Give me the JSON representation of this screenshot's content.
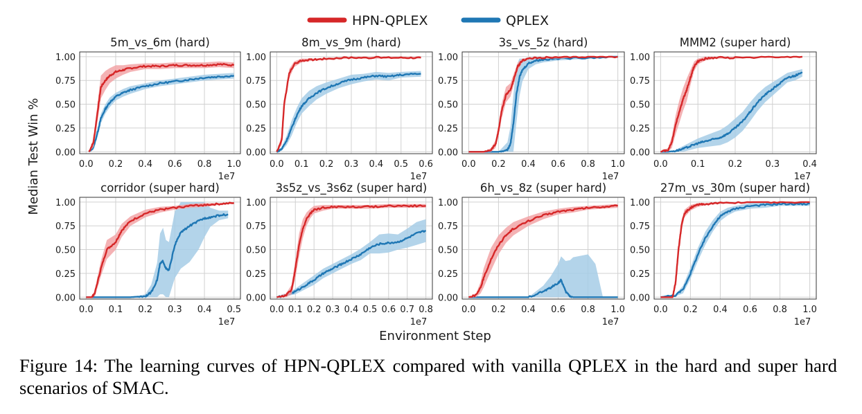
{
  "figure": {
    "caption": "Figure 14:  The learning curves of HPN-QPLEX compared with vanilla QPLEX in the hard and super hard scenarios of SMAC.",
    "legend": [
      {
        "label": "HPN-QPLEX",
        "color": "#d62728"
      },
      {
        "label": "QPLEX",
        "color": "#1f77b4"
      }
    ],
    "shared_xlabel": "Environment Step",
    "shared_ylabel": "Median Test Win  %",
    "band_colors": {
      "HPN-QPLEX": "#f2a5a7",
      "QPLEX": "#a6cde6"
    },
    "line_colors": {
      "HPN-QPLEX": "#d62728",
      "QPLEX": "#1f77b4"
    }
  },
  "chart_data": [
    {
      "type": "line",
      "title": "5m_vs_6m (hard)",
      "xlim": [
        0,
        1.0
      ],
      "ylim": [
        0,
        1.0
      ],
      "xticks": [
        "0.0",
        "0.2",
        "0.4",
        "0.6",
        "0.8",
        "1.0"
      ],
      "yticks": [
        "0.00",
        "0.25",
        "0.50",
        "0.75",
        "1.00"
      ],
      "x_scale_label": "1e7",
      "series": [
        {
          "name": "HPN-QPLEX",
          "x": [
            0.02,
            0.05,
            0.08,
            0.1,
            0.13,
            0.16,
            0.2,
            0.25,
            0.3,
            0.4,
            0.5,
            0.6,
            0.7,
            0.8,
            0.9,
            1.0
          ],
          "y": [
            0.0,
            0.1,
            0.45,
            0.68,
            0.75,
            0.8,
            0.84,
            0.86,
            0.88,
            0.9,
            0.9,
            0.91,
            0.91,
            0.91,
            0.92,
            0.91
          ],
          "band": [
            0.0,
            0.05,
            0.1,
            0.12,
            0.1,
            0.08,
            0.07,
            0.05,
            0.04,
            0.03,
            0.03,
            0.03,
            0.03,
            0.03,
            0.03,
            0.03
          ]
        },
        {
          "name": "QPLEX",
          "x": [
            0.02,
            0.05,
            0.08,
            0.1,
            0.13,
            0.16,
            0.2,
            0.25,
            0.3,
            0.4,
            0.5,
            0.6,
            0.7,
            0.8,
            0.9,
            1.0
          ],
          "y": [
            0.0,
            0.05,
            0.22,
            0.35,
            0.45,
            0.52,
            0.58,
            0.62,
            0.65,
            0.69,
            0.72,
            0.74,
            0.76,
            0.78,
            0.79,
            0.8
          ],
          "band": [
            0.0,
            0.03,
            0.05,
            0.05,
            0.05,
            0.05,
            0.04,
            0.04,
            0.04,
            0.03,
            0.03,
            0.03,
            0.03,
            0.03,
            0.03,
            0.03
          ]
        }
      ]
    },
    {
      "type": "line",
      "title": "8m_vs_9m (hard)",
      "xlim": [
        0,
        0.6
      ],
      "ylim": [
        0,
        1.0
      ],
      "xticks": [
        "0.0",
        "0.1",
        "0.2",
        "0.3",
        "0.4",
        "0.5",
        "0.6"
      ],
      "yticks": [
        "0.00",
        "0.25",
        "0.50",
        "0.75",
        "1.00"
      ],
      "x_scale_label": "1e7",
      "series": [
        {
          "name": "HPN-QPLEX",
          "x": [
            0.0,
            0.02,
            0.03,
            0.05,
            0.07,
            0.1,
            0.15,
            0.2,
            0.3,
            0.4,
            0.5,
            0.58
          ],
          "y": [
            0.0,
            0.12,
            0.5,
            0.82,
            0.92,
            0.96,
            0.97,
            0.98,
            0.99,
            0.99,
            0.99,
            0.99
          ],
          "band": [
            0.0,
            0.05,
            0.05,
            0.05,
            0.03,
            0.02,
            0.01,
            0.01,
            0.01,
            0.01,
            0.01,
            0.01
          ]
        },
        {
          "name": "QPLEX",
          "x": [
            0.0,
            0.02,
            0.04,
            0.06,
            0.08,
            0.1,
            0.13,
            0.16,
            0.2,
            0.25,
            0.3,
            0.35,
            0.4,
            0.45,
            0.5,
            0.58
          ],
          "y": [
            0.0,
            0.03,
            0.12,
            0.25,
            0.38,
            0.48,
            0.56,
            0.62,
            0.67,
            0.72,
            0.76,
            0.78,
            0.8,
            0.79,
            0.81,
            0.82
          ],
          "band": [
            0.0,
            0.02,
            0.05,
            0.08,
            0.08,
            0.08,
            0.08,
            0.07,
            0.06,
            0.05,
            0.05,
            0.04,
            0.04,
            0.04,
            0.03,
            0.03
          ]
        }
      ]
    },
    {
      "type": "line",
      "title": "3s_vs_5z (hard)",
      "xlim": [
        0,
        1.0
      ],
      "ylim": [
        0,
        1.0
      ],
      "xticks": [
        "0.0",
        "0.2",
        "0.4",
        "0.6",
        "0.8",
        "1.0"
      ],
      "yticks": [
        "0.00",
        "0.25",
        "0.50",
        "0.75",
        "1.00"
      ],
      "x_scale_label": "1e7",
      "series": [
        {
          "name": "HPN-QPLEX",
          "x": [
            0.0,
            0.1,
            0.15,
            0.18,
            0.2,
            0.22,
            0.25,
            0.28,
            0.3,
            0.33,
            0.36,
            0.4,
            0.5,
            0.6,
            0.8,
            1.0
          ],
          "y": [
            0.0,
            0.0,
            0.02,
            0.08,
            0.22,
            0.42,
            0.6,
            0.65,
            0.75,
            0.9,
            0.96,
            0.98,
            0.99,
            0.99,
            1.0,
            1.0
          ],
          "band": [
            0.0,
            0.0,
            0.02,
            0.04,
            0.06,
            0.08,
            0.08,
            0.07,
            0.06,
            0.04,
            0.02,
            0.01,
            0.01,
            0.01,
            0.0,
            0.0
          ]
        },
        {
          "name": "QPLEX",
          "x": [
            0.0,
            0.2,
            0.26,
            0.28,
            0.3,
            0.32,
            0.34,
            0.36,
            0.4,
            0.45,
            0.5,
            0.6,
            0.8,
            1.0
          ],
          "y": [
            0.0,
            0.0,
            0.02,
            0.08,
            0.3,
            0.6,
            0.78,
            0.86,
            0.93,
            0.96,
            0.97,
            0.98,
            0.99,
            1.0
          ],
          "band": [
            0.0,
            0.0,
            0.08,
            0.18,
            0.3,
            0.3,
            0.2,
            0.12,
            0.06,
            0.04,
            0.03,
            0.02,
            0.01,
            0.0
          ]
        }
      ]
    },
    {
      "type": "line",
      "title": "MMM2 (super hard)",
      "xlim": [
        0,
        0.4
      ],
      "ylim": [
        0,
        1.0
      ],
      "xticks": [
        "0.0",
        "0.1",
        "0.2",
        "0.3",
        "0.4"
      ],
      "yticks": [
        "0.00",
        "0.25",
        "0.50",
        "0.75",
        "1.00"
      ],
      "x_scale_label": "1e7",
      "series": [
        {
          "name": "HPN-QPLEX",
          "x": [
            0.0,
            0.02,
            0.03,
            0.04,
            0.05,
            0.06,
            0.07,
            0.08,
            0.09,
            0.1,
            0.12,
            0.15,
            0.2,
            0.3,
            0.38
          ],
          "y": [
            0.0,
            0.02,
            0.1,
            0.28,
            0.42,
            0.55,
            0.65,
            0.78,
            0.9,
            0.95,
            0.98,
            0.99,
            0.99,
            1.0,
            1.0
          ],
          "band": [
            0.0,
            0.02,
            0.06,
            0.1,
            0.12,
            0.12,
            0.12,
            0.08,
            0.05,
            0.03,
            0.02,
            0.01,
            0.01,
            0.0,
            0.0
          ]
        },
        {
          "name": "QPLEX",
          "x": [
            0.0,
            0.02,
            0.04,
            0.06,
            0.08,
            0.1,
            0.12,
            0.14,
            0.16,
            0.18,
            0.2,
            0.22,
            0.24,
            0.26,
            0.28,
            0.3,
            0.32,
            0.34,
            0.36,
            0.38
          ],
          "y": [
            0.0,
            0.0,
            0.01,
            0.03,
            0.06,
            0.09,
            0.11,
            0.13,
            0.15,
            0.19,
            0.25,
            0.32,
            0.42,
            0.52,
            0.6,
            0.66,
            0.72,
            0.78,
            0.8,
            0.83
          ],
          "band": [
            0.0,
            0.0,
            0.01,
            0.03,
            0.04,
            0.05,
            0.06,
            0.07,
            0.08,
            0.09,
            0.1,
            0.1,
            0.1,
            0.09,
            0.08,
            0.07,
            0.06,
            0.05,
            0.05,
            0.04
          ]
        }
      ]
    },
    {
      "type": "line",
      "title": "corridor (super hard)",
      "xlim": [
        0,
        0.5
      ],
      "ylim": [
        0,
        1.0
      ],
      "xticks": [
        "0.0",
        "0.1",
        "0.2",
        "0.3",
        "0.4",
        "0.5"
      ],
      "yticks": [
        "0.00",
        "0.25",
        "0.50",
        "0.75",
        "1.00"
      ],
      "x_scale_label": "1e7",
      "series": [
        {
          "name": "HPN-QPLEX",
          "x": [
            0.0,
            0.02,
            0.03,
            0.05,
            0.07,
            0.1,
            0.12,
            0.15,
            0.2,
            0.25,
            0.3,
            0.35,
            0.4,
            0.45,
            0.5
          ],
          "y": [
            0.0,
            0.0,
            0.05,
            0.3,
            0.5,
            0.58,
            0.7,
            0.8,
            0.88,
            0.92,
            0.94,
            0.96,
            0.97,
            0.98,
            0.99
          ],
          "band": [
            0.0,
            0.0,
            0.04,
            0.08,
            0.1,
            0.08,
            0.07,
            0.05,
            0.04,
            0.03,
            0.02,
            0.02,
            0.02,
            0.01,
            0.01
          ]
        },
        {
          "name": "QPLEX",
          "x": [
            0.0,
            0.15,
            0.2,
            0.22,
            0.24,
            0.25,
            0.26,
            0.27,
            0.28,
            0.3,
            0.32,
            0.35,
            0.38,
            0.4,
            0.42,
            0.45,
            0.48
          ],
          "y": [
            0.0,
            0.0,
            0.01,
            0.05,
            0.18,
            0.35,
            0.38,
            0.3,
            0.28,
            0.55,
            0.68,
            0.75,
            0.8,
            0.83,
            0.84,
            0.86,
            0.87
          ],
          "band": [
            0.0,
            0.0,
            0.02,
            0.08,
            0.18,
            0.32,
            0.35,
            0.3,
            0.3,
            0.35,
            0.38,
            0.38,
            0.3,
            0.2,
            0.1,
            0.05,
            0.04
          ]
        }
      ]
    },
    {
      "type": "line",
      "title": "3s5z_vs_3s6z (super hard)",
      "xlim": [
        0,
        0.8
      ],
      "ylim": [
        0,
        1.0
      ],
      "xticks": [
        "0.0",
        "0.1",
        "0.2",
        "0.3",
        "0.4",
        "0.5",
        "0.6",
        "0.7",
        "0.8"
      ],
      "yticks": [
        "0.00",
        "0.25",
        "0.50",
        "0.75",
        "1.00"
      ],
      "x_scale_label": "1e7",
      "series": [
        {
          "name": "HPN-QPLEX",
          "x": [
            0.0,
            0.05,
            0.08,
            0.1,
            0.12,
            0.14,
            0.16,
            0.18,
            0.2,
            0.25,
            0.3,
            0.4,
            0.5,
            0.6,
            0.7,
            0.8
          ],
          "y": [
            0.0,
            0.02,
            0.08,
            0.3,
            0.55,
            0.72,
            0.82,
            0.88,
            0.92,
            0.94,
            0.95,
            0.95,
            0.95,
            0.96,
            0.96,
            0.96
          ],
          "band": [
            0.0,
            0.02,
            0.05,
            0.1,
            0.12,
            0.1,
            0.07,
            0.05,
            0.04,
            0.03,
            0.02,
            0.02,
            0.02,
            0.02,
            0.02,
            0.02
          ]
        },
        {
          "name": "QPLEX",
          "x": [
            0.0,
            0.05,
            0.1,
            0.15,
            0.2,
            0.25,
            0.3,
            0.35,
            0.4,
            0.45,
            0.5,
            0.55,
            0.6,
            0.65,
            0.7,
            0.75,
            0.8
          ],
          "y": [
            0.0,
            0.02,
            0.06,
            0.12,
            0.18,
            0.25,
            0.3,
            0.35,
            0.4,
            0.45,
            0.52,
            0.56,
            0.57,
            0.58,
            0.62,
            0.67,
            0.7
          ],
          "band": [
            0.0,
            0.01,
            0.03,
            0.04,
            0.05,
            0.05,
            0.05,
            0.05,
            0.05,
            0.06,
            0.06,
            0.1,
            0.1,
            0.08,
            0.1,
            0.12,
            0.12
          ]
        }
      ]
    },
    {
      "type": "line",
      "title": "6h_vs_8z (super hard)",
      "xlim": [
        0,
        1.0
      ],
      "ylim": [
        0,
        1.0
      ],
      "xticks": [
        "0.0",
        "0.2",
        "0.4",
        "0.6",
        "0.8",
        "1.0"
      ],
      "yticks": [
        "0.00",
        "0.25",
        "0.50",
        "0.75",
        "1.00"
      ],
      "x_scale_label": "1e7",
      "series": [
        {
          "name": "HPN-QPLEX",
          "x": [
            0.0,
            0.05,
            0.08,
            0.1,
            0.15,
            0.2,
            0.25,
            0.3,
            0.4,
            0.5,
            0.6,
            0.7,
            0.8,
            0.9,
            1.0
          ],
          "y": [
            0.0,
            0.02,
            0.1,
            0.2,
            0.4,
            0.55,
            0.65,
            0.72,
            0.8,
            0.86,
            0.9,
            0.92,
            0.94,
            0.95,
            0.96
          ],
          "band": [
            0.0,
            0.02,
            0.06,
            0.1,
            0.12,
            0.1,
            0.08,
            0.07,
            0.05,
            0.04,
            0.03,
            0.03,
            0.02,
            0.02,
            0.02
          ]
        },
        {
          "name": "QPLEX",
          "x": [
            0.0,
            0.4,
            0.5,
            0.55,
            0.6,
            0.62,
            0.65,
            0.68,
            0.7,
            0.8,
            0.85,
            0.9,
            1.0
          ],
          "y": [
            0.0,
            0.0,
            0.06,
            0.1,
            0.15,
            0.18,
            0.06,
            0.01,
            0.0,
            0.0,
            0.0,
            0.0,
            0.0
          ],
          "band": [
            0.0,
            0.0,
            0.06,
            0.12,
            0.2,
            0.25,
            0.32,
            0.38,
            0.42,
            0.45,
            0.35,
            0.0,
            0.0
          ]
        }
      ]
    },
    {
      "type": "line",
      "title": "27m_vs_30m (super hard)",
      "xlim": [
        0,
        1.0
      ],
      "ylim": [
        0,
        1.0
      ],
      "xticks": [
        "0.0",
        "0.2",
        "0.4",
        "0.6",
        "0.8",
        "1.0"
      ],
      "yticks": [
        "0.00",
        "0.25",
        "0.50",
        "0.75",
        "1.00"
      ],
      "x_scale_label": "1e7",
      "series": [
        {
          "name": "HPN-QPLEX",
          "x": [
            0.0,
            0.08,
            0.1,
            0.12,
            0.14,
            0.16,
            0.2,
            0.25,
            0.3,
            0.4,
            0.6,
            0.8,
            1.0
          ],
          "y": [
            0.0,
            0.0,
            0.15,
            0.5,
            0.75,
            0.88,
            0.94,
            0.97,
            0.98,
            0.99,
            1.0,
            1.0,
            1.0
          ],
          "band": [
            0.0,
            0.0,
            0.05,
            0.08,
            0.06,
            0.04,
            0.03,
            0.02,
            0.01,
            0.01,
            0.0,
            0.0,
            0.0
          ]
        },
        {
          "name": "QPLEX",
          "x": [
            0.0,
            0.1,
            0.15,
            0.2,
            0.25,
            0.3,
            0.35,
            0.4,
            0.45,
            0.5,
            0.6,
            0.7,
            0.8,
            0.9,
            1.0
          ],
          "y": [
            0.0,
            0.02,
            0.08,
            0.25,
            0.45,
            0.62,
            0.75,
            0.85,
            0.9,
            0.93,
            0.96,
            0.97,
            0.98,
            0.98,
            0.98
          ],
          "band": [
            0.0,
            0.01,
            0.04,
            0.06,
            0.07,
            0.07,
            0.06,
            0.05,
            0.04,
            0.03,
            0.03,
            0.03,
            0.02,
            0.02,
            0.02
          ]
        }
      ]
    }
  ]
}
